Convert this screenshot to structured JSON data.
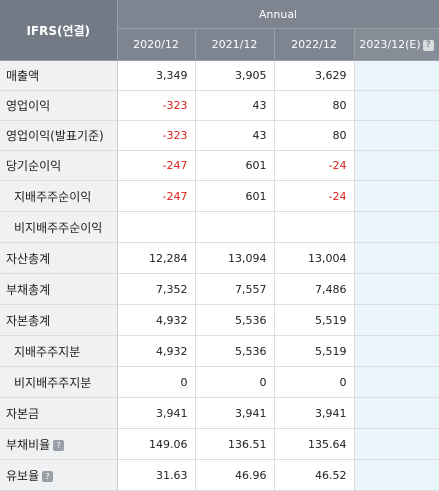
{
  "header": {
    "ifrs_label": "IFRS(연결)",
    "period_group": "Annual",
    "years": [
      "2020/12",
      "2021/12",
      "2022/12"
    ],
    "estimate_year": "2023/12(E)",
    "estimate_icon": "question-icon"
  },
  "rows": [
    {
      "label": "매출액",
      "v1": "3,349",
      "v2": "3,905",
      "v3": "3,629",
      "v4": ""
    },
    {
      "label": "영업이익",
      "v1": "-323",
      "v2": "43",
      "v3": "80",
      "v4": ""
    },
    {
      "label": "영업이익(발표기준)",
      "v1": "-323",
      "v2": "43",
      "v3": "80",
      "v4": ""
    },
    {
      "label": "당기순이익",
      "v1": "-247",
      "v2": "601",
      "v3": "-24",
      "v4": ""
    },
    {
      "label": "지배주주순이익",
      "v1": "-247",
      "v2": "601",
      "v3": "-24",
      "v4": ""
    },
    {
      "label": "비지배주주순이익",
      "v1": "",
      "v2": "",
      "v3": "",
      "v4": ""
    },
    {
      "label": "자산총계",
      "v1": "12,284",
      "v2": "13,094",
      "v3": "13,004",
      "v4": ""
    },
    {
      "label": "부채총계",
      "v1": "7,352",
      "v2": "7,557",
      "v3": "7,486",
      "v4": ""
    },
    {
      "label": "자본총계",
      "v1": "4,932",
      "v2": "5,536",
      "v3": "5,519",
      "v4": ""
    },
    {
      "label": "지배주주지분",
      "v1": "4,932",
      "v2": "5,536",
      "v3": "5,519",
      "v4": ""
    },
    {
      "label": "비지배주주지분",
      "v1": "0",
      "v2": "0",
      "v3": "0",
      "v4": ""
    },
    {
      "label": "자본금",
      "v1": "3,941",
      "v2": "3,941",
      "v3": "3,941",
      "v4": ""
    },
    {
      "label": "부채비율",
      "v1": "149.06",
      "v2": "136.51",
      "v3": "135.64",
      "v4": ""
    },
    {
      "label": "유보율",
      "v1": "31.63",
      "v2": "46.96",
      "v3": "46.52",
      "v4": ""
    }
  ],
  "colors": {
    "negative": "#e0201c",
    "header_bg": "#7e8590",
    "estimate_bg": "#e9f5fb"
  }
}
